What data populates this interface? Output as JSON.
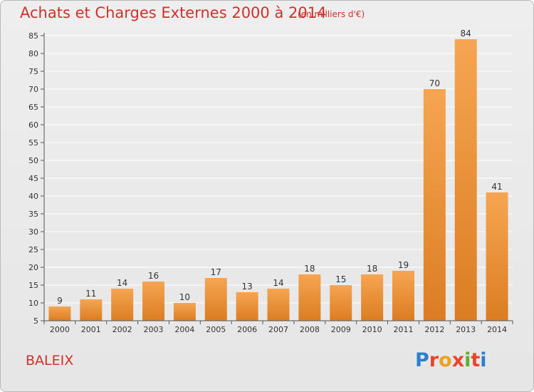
{
  "title": "Achats et Charges Externes 2000 à 2014",
  "subtitle": "(en milliers d'€)",
  "commune": "BALEIX",
  "logo": {
    "letters": [
      "P",
      "r",
      "o",
      "x",
      "i",
      "t",
      "i"
    ],
    "colors": [
      "#2a7fcf",
      "#e8452c",
      "#f0a020",
      "#e8452c",
      "#5cb030",
      "#e8452c",
      "#2a7fcf"
    ]
  },
  "colors": {
    "bar_top": "#f6a552",
    "bar_bottom": "#db7d22",
    "grid": "#ffffff",
    "text_red": "#d0302a"
  },
  "chart_data": {
    "type": "bar",
    "categories": [
      "2000",
      "2001",
      "2002",
      "2003",
      "2004",
      "2005",
      "2006",
      "2007",
      "2008",
      "2009",
      "2010",
      "2011",
      "2012",
      "2013",
      "2014"
    ],
    "values": [
      9,
      11,
      14,
      16,
      10,
      17,
      13,
      14,
      18,
      15,
      18,
      19,
      70,
      84,
      41
    ],
    "title": "Achats et Charges Externes 2000 à 2014",
    "subtitle": "(en milliers d'€)",
    "ylim": [
      5,
      85
    ],
    "yticks": [
      5,
      10,
      15,
      20,
      25,
      30,
      35,
      40,
      45,
      50,
      55,
      60,
      65,
      70,
      75,
      80,
      85
    ],
    "grid": true
  }
}
